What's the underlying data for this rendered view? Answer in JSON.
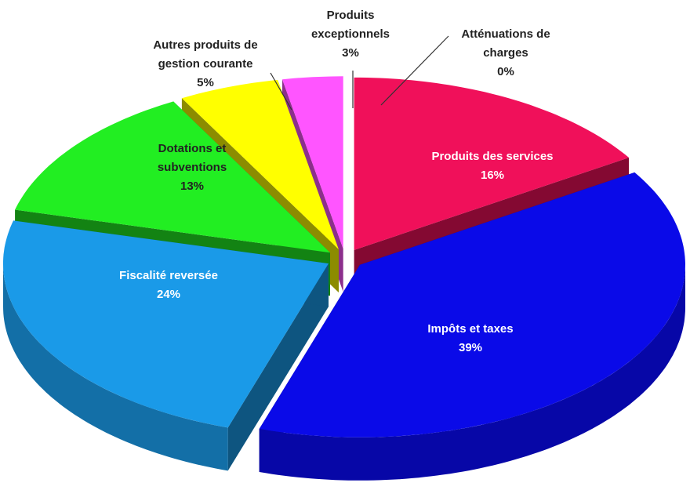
{
  "chart_data": {
    "type": "pie",
    "categories": [
      "Produits des services",
      "Impôts et taxes",
      "Fiscalité reversée",
      "Dotations et subventions",
      "Autres produits de gestion courante",
      "Produits exceptionnels",
      "Atténuations de charges"
    ],
    "values": [
      16,
      39,
      24,
      13,
      5,
      3,
      0
    ],
    "value_labels": [
      "16%",
      "39%",
      "24%",
      "13%",
      "5%",
      "3%",
      "0%"
    ],
    "colors": [
      "#f0105a",
      "#0a0ae8",
      "#1a9ae8",
      "#22ee22",
      "#ffff00",
      "#ff55ff",
      "#33dddd"
    ]
  }
}
